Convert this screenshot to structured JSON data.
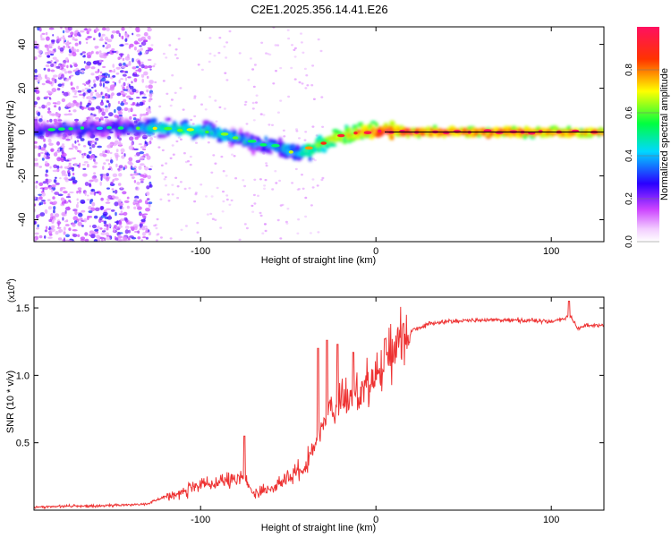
{
  "title": "C2E1.2025.356.14.41.E26",
  "chart_data": [
    {
      "type": "heatmap",
      "name": "spectrogram",
      "xlabel": "Height of straight line (km)",
      "ylabel": "Frequency (Hz)",
      "xlim": [
        -195,
        130
      ],
      "ylim": [
        -50,
        48
      ],
      "xticks": [
        -100,
        0,
        100
      ],
      "yticks": [
        -40,
        -20,
        0,
        20,
        40
      ],
      "colorbar": {
        "label": "Normalized spectral amplitude",
        "range": [
          0,
          1
        ],
        "ticks": [
          "0.0",
          "0.2",
          "0.4",
          "0.6",
          "0.8"
        ],
        "tick_values": [
          0,
          0.2,
          0.4,
          0.6,
          0.8
        ],
        "colors": [
          "#ffffff",
          "#cc44ff",
          "#2a00ff",
          "#00d8ff",
          "#00ff40",
          "#ffff00",
          "#ff3300",
          "#ff1060"
        ]
      },
      "reference_line": {
        "y": 0,
        "from_x": 5,
        "to_x": 130,
        "color": "#000000"
      },
      "ridge": {
        "x": [
          -195,
          -140,
          -125,
          -100,
          -85,
          -70,
          -55,
          -45,
          -35,
          -25,
          -15,
          -5,
          5,
          20,
          60,
          100,
          130
        ],
        "y": [
          1,
          2,
          2,
          0.5,
          -1,
          -5,
          -7,
          -10,
          -7,
          -3,
          -1,
          0,
          0.5,
          0,
          0,
          0,
          0
        ],
        "amplitude": [
          0.3,
          0.35,
          0.5,
          0.5,
          0.45,
          0.4,
          0.4,
          0.45,
          0.6,
          0.7,
          0.75,
          0.8,
          0.9,
          0.9,
          0.9,
          0.85,
          0.8
        ]
      }
    },
    {
      "type": "line",
      "name": "snr",
      "xlabel": "Height of straight line (km)",
      "ylabel": "SNR (10 * v/v)",
      "y_multiplier": "(x10",
      "y_multiplier_exp": "4",
      "y_multiplier_close": ")",
      "xlim": [
        -195,
        130
      ],
      "ylim": [
        0,
        1.58
      ],
      "xticks": [
        -100,
        0,
        100
      ],
      "yticks": [
        0.5,
        1.0,
        1.5
      ],
      "ytick_labels": [
        "0.5",
        "1.0",
        "1.5"
      ],
      "color": "#ee3333",
      "series": [
        {
          "name": "SNR",
          "x": [
            -195,
            -180,
            -160,
            -140,
            -130,
            -120,
            -110,
            -100,
            -90,
            -80,
            -75,
            -70,
            -60,
            -50,
            -45,
            -40,
            -35,
            -30,
            -25,
            -20,
            -15,
            -10,
            -5,
            0,
            5,
            10,
            20,
            30,
            40,
            60,
            80,
            100,
            108,
            110,
            115,
            120,
            130
          ],
          "y": [
            0.02,
            0.03,
            0.03,
            0.04,
            0.05,
            0.1,
            0.14,
            0.18,
            0.2,
            0.22,
            0.25,
            0.12,
            0.16,
            0.24,
            0.28,
            0.32,
            0.5,
            0.65,
            0.72,
            0.8,
            0.85,
            0.88,
            0.93,
            1.0,
            1.1,
            1.22,
            1.33,
            1.38,
            1.4,
            1.41,
            1.41,
            1.4,
            1.42,
            1.45,
            1.35,
            1.37,
            1.37
          ]
        }
      ],
      "spikes": [
        {
          "x": -75,
          "y": 0.55
        },
        {
          "x": -33,
          "y": 1.2
        },
        {
          "x": -28,
          "y": 1.26
        },
        {
          "x": -22,
          "y": 1.23
        },
        {
          "x": -13,
          "y": 1.17
        },
        {
          "x": 5,
          "y": 1.27
        },
        {
          "x": 110,
          "y": 1.55
        }
      ]
    }
  ]
}
